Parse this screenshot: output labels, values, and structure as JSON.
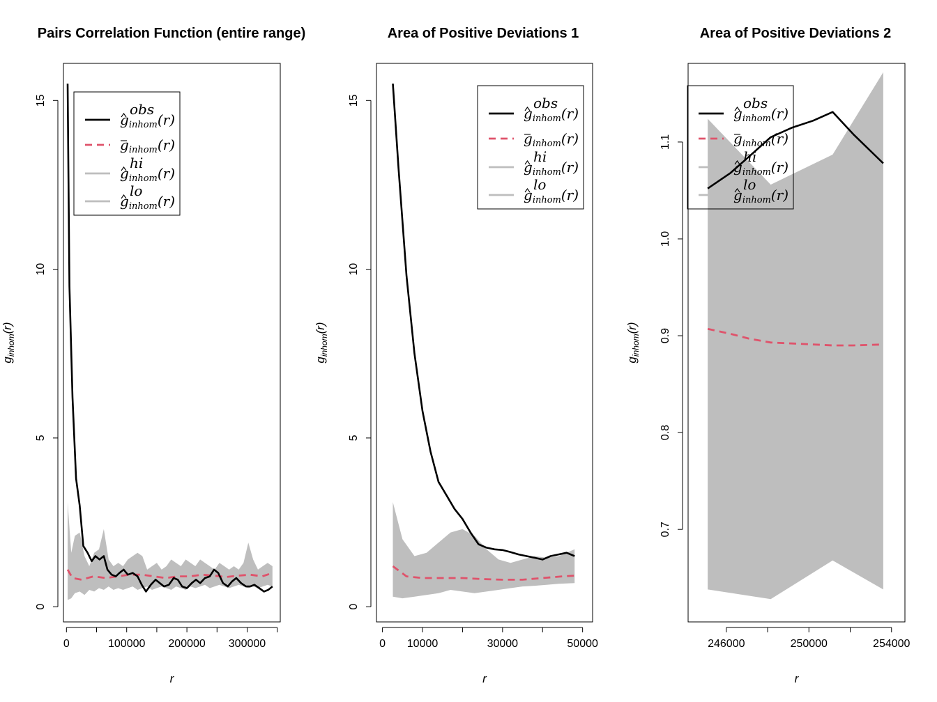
{
  "chart_data": [
    {
      "type": "line",
      "title": "Pairs Correlation Function (entire range)",
      "xlabel": "r",
      "ylabel": "g_inhom(r)",
      "xlim": [
        -5000,
        355000
      ],
      "ylim": [
        -0.45,
        16.1
      ],
      "xticks": [
        0,
        100000,
        200000,
        300000
      ],
      "xtick_labels": [
        "0",
        "100000",
        "200000",
        "300000"
      ],
      "xticks_minor": [
        50000,
        150000,
        250000,
        350000
      ],
      "yticks": [
        0,
        5,
        10,
        15
      ],
      "ytick_labels": [
        "0",
        "5",
        "10",
        "15"
      ],
      "legend_position": "top-left",
      "grid": false,
      "series": [
        {
          "name": "obs",
          "color": "#000000",
          "style": "solid",
          "x": [
            2000,
            5000,
            10000,
            16000,
            22000,
            28000,
            35000,
            42000,
            48000,
            55000,
            62000,
            68000,
            75000,
            82000,
            88000,
            95000,
            102000,
            110000,
            118000,
            125000,
            132000,
            140000,
            148000,
            155000,
            162000,
            170000,
            178000,
            185000,
            192000,
            200000,
            208000,
            215000,
            222000,
            230000,
            238000,
            245000,
            252000,
            260000,
            268000,
            275000,
            282000,
            290000,
            298000,
            305000,
            312000,
            320000,
            328000,
            335000,
            342000
          ],
          "y": [
            15.5,
            9.5,
            6.2,
            3.8,
            3.0,
            1.8,
            1.6,
            1.35,
            1.5,
            1.4,
            1.5,
            1.1,
            0.95,
            0.9,
            1.0,
            1.1,
            0.95,
            1.0,
            0.9,
            0.65,
            0.45,
            0.65,
            0.8,
            0.7,
            0.6,
            0.65,
            0.85,
            0.8,
            0.6,
            0.55,
            0.7,
            0.8,
            0.7,
            0.85,
            0.9,
            1.1,
            1.0,
            0.7,
            0.6,
            0.75,
            0.85,
            0.7,
            0.6,
            0.6,
            0.65,
            0.55,
            0.45,
            0.5,
            0.6
          ]
        },
        {
          "name": "mean",
          "color": "#DF536B",
          "style": "dashed",
          "x": [
            2000,
            10000,
            25000,
            45000,
            65000,
            85000,
            105000,
            125000,
            145000,
            165000,
            185000,
            205000,
            225000,
            245000,
            265000,
            285000,
            305000,
            325000,
            342000
          ],
          "y": [
            1.1,
            0.85,
            0.8,
            0.9,
            0.85,
            0.9,
            0.95,
            0.95,
            0.9,
            0.85,
            0.9,
            0.9,
            0.95,
            0.92,
            0.88,
            0.92,
            0.95,
            0.9,
            1.0
          ]
        },
        {
          "name": "hi",
          "color": "#BEBEBE",
          "style": "band-upper",
          "x": [
            2000,
            8000,
            14000,
            22000,
            30000,
            38000,
            46000,
            54000,
            62000,
            70000,
            78000,
            86000,
            94000,
            102000,
            110000,
            118000,
            126000,
            134000,
            142000,
            150000,
            158000,
            166000,
            174000,
            182000,
            190000,
            198000,
            206000,
            214000,
            222000,
            230000,
            238000,
            246000,
            254000,
            262000,
            270000,
            278000,
            286000,
            294000,
            302000,
            310000,
            318000,
            326000,
            334000,
            342000
          ],
          "y": [
            3.1,
            1.6,
            2.1,
            2.2,
            1.5,
            1.2,
            1.6,
            1.7,
            2.3,
            1.4,
            1.2,
            1.3,
            1.2,
            1.4,
            1.5,
            1.6,
            1.5,
            1.1,
            1.2,
            1.3,
            1.1,
            1.2,
            1.4,
            1.3,
            1.2,
            1.4,
            1.3,
            1.2,
            1.4,
            1.3,
            1.2,
            1.1,
            1.3,
            1.2,
            1.1,
            1.2,
            1.1,
            1.3,
            1.9,
            1.4,
            1.1,
            1.2,
            1.3,
            1.2
          ]
        },
        {
          "name": "lo",
          "color": "#BEBEBE",
          "style": "band-lower",
          "x": [
            2000,
            8000,
            14000,
            22000,
            30000,
            38000,
            46000,
            54000,
            62000,
            70000,
            78000,
            86000,
            94000,
            102000,
            110000,
            118000,
            126000,
            134000,
            142000,
            150000,
            158000,
            166000,
            174000,
            182000,
            190000,
            198000,
            206000,
            214000,
            222000,
            230000,
            238000,
            246000,
            254000,
            262000,
            270000,
            278000,
            286000,
            294000,
            302000,
            310000,
            318000,
            326000,
            334000,
            342000
          ],
          "y": [
            0.2,
            0.25,
            0.4,
            0.45,
            0.35,
            0.5,
            0.45,
            0.55,
            0.5,
            0.6,
            0.5,
            0.55,
            0.5,
            0.55,
            0.6,
            0.5,
            0.55,
            0.6,
            0.5,
            0.55,
            0.6,
            0.55,
            0.5,
            0.6,
            0.55,
            0.5,
            0.6,
            0.55,
            0.6,
            0.65,
            0.55,
            0.6,
            0.65,
            0.6,
            0.55,
            0.6,
            0.65,
            0.6,
            0.55,
            0.6,
            0.55,
            0.6,
            0.65,
            0.6
          ]
        }
      ]
    },
    {
      "type": "line",
      "title": "Area of Positive Deviations 1",
      "xlabel": "r",
      "ylabel": "g_inhom(r)",
      "xlim": [
        -1500,
        52500
      ],
      "ylim": [
        -0.45,
        16.1
      ],
      "xticks": [
        0,
        10000,
        30000,
        50000
      ],
      "xtick_labels": [
        "0",
        "10000",
        "30000",
        "50000"
      ],
      "xticks_minor": [
        20000,
        40000
      ],
      "yticks": [
        0,
        5,
        10,
        15
      ],
      "ytick_labels": [
        "0",
        "5",
        "10",
        "15"
      ],
      "legend_position": "top-right",
      "grid": false,
      "series": [
        {
          "name": "obs",
          "color": "#000000",
          "style": "solid",
          "x": [
            2600,
            4000,
            6000,
            8000,
            10000,
            12000,
            14000,
            16000,
            18000,
            20000,
            22000,
            24000,
            26000,
            28000,
            30000,
            32000,
            34000,
            36000,
            38000,
            40000,
            42000,
            44000,
            46000,
            48000
          ],
          "y": [
            15.5,
            13.0,
            9.8,
            7.5,
            5.8,
            4.6,
            3.7,
            3.3,
            2.9,
            2.6,
            2.2,
            1.85,
            1.75,
            1.7,
            1.68,
            1.62,
            1.55,
            1.5,
            1.45,
            1.4,
            1.5,
            1.55,
            1.6,
            1.5
          ]
        },
        {
          "name": "mean",
          "color": "#DF536B",
          "style": "dashed",
          "x": [
            2600,
            6000,
            10000,
            15000,
            20000,
            25000,
            30000,
            35000,
            40000,
            45000,
            48000
          ],
          "y": [
            1.2,
            0.9,
            0.85,
            0.85,
            0.85,
            0.82,
            0.8,
            0.8,
            0.85,
            0.9,
            0.92
          ]
        },
        {
          "name": "hi",
          "color": "#BEBEBE",
          "style": "band-upper",
          "x": [
            2600,
            5000,
            8000,
            11000,
            14000,
            17000,
            20000,
            23000,
            26000,
            29000,
            32000,
            35000,
            38000,
            41000,
            44000,
            48000
          ],
          "y": [
            3.1,
            2.0,
            1.5,
            1.6,
            1.9,
            2.2,
            2.3,
            2.1,
            1.7,
            1.4,
            1.3,
            1.4,
            1.5,
            1.45,
            1.5,
            1.7
          ]
        },
        {
          "name": "lo",
          "color": "#BEBEBE",
          "style": "band-lower",
          "x": [
            2600,
            5000,
            8000,
            11000,
            14000,
            17000,
            20000,
            23000,
            26000,
            29000,
            32000,
            35000,
            38000,
            41000,
            44000,
            48000
          ],
          "y": [
            0.3,
            0.25,
            0.3,
            0.35,
            0.4,
            0.5,
            0.45,
            0.4,
            0.45,
            0.5,
            0.55,
            0.6,
            0.62,
            0.65,
            0.68,
            0.7
          ]
        }
      ]
    },
    {
      "type": "line",
      "title": "Area of Positive Deviations 2",
      "xlabel": "r",
      "ylabel": "g_inhom(r)",
      "xlim": [
        244150,
        254650
      ],
      "ylim": [
        0.6045,
        1.1812
      ],
      "xticks": [
        246000,
        250000,
        254000
      ],
      "xtick_labels": [
        "246000",
        "250000",
        "254000"
      ],
      "xticks_minor": [
        248000,
        252000
      ],
      "yticks": [
        0.7,
        0.8,
        0.9,
        1.0,
        1.1
      ],
      "ytick_labels": [
        "0.7",
        "0.8",
        "0.9",
        "1.0",
        "1.1"
      ],
      "legend_position": "top-left",
      "grid": false,
      "series": [
        {
          "name": "obs",
          "color": "#000000",
          "style": "solid",
          "x": [
            245100,
            246200,
            247100,
            248150,
            249200,
            250200,
            251150,
            252150,
            253600
          ],
          "y": [
            1.052,
            1.068,
            1.085,
            1.105,
            1.115,
            1.122,
            1.131,
            1.108,
            1.078
          ]
        },
        {
          "name": "mean",
          "color": "#DF536B",
          "style": "dashed",
          "x": [
            245100,
            246200,
            247100,
            248150,
            249200,
            250200,
            251150,
            252150,
            253600
          ],
          "y": [
            0.907,
            0.902,
            0.897,
            0.893,
            0.892,
            0.891,
            0.89,
            0.89,
            0.891
          ]
        },
        {
          "name": "hi",
          "color": "#BEBEBE",
          "style": "band-upper",
          "x": [
            245100,
            248150,
            251150,
            253600
          ],
          "y": [
            1.124,
            1.056,
            1.087,
            1.172
          ]
        },
        {
          "name": "lo",
          "color": "#BEBEBE",
          "style": "band-lower",
          "x": [
            245100,
            248150,
            251150,
            253600
          ],
          "y": [
            0.638,
            0.628,
            0.668,
            0.638
          ]
        }
      ]
    }
  ],
  "legend_entries": [
    {
      "key": "obs",
      "accent": "hat",
      "base": "g",
      "sup": "obs",
      "sub": "inhom",
      "arg": "(r)",
      "color": "#000000",
      "dash": ""
    },
    {
      "key": "mean",
      "accent": "bar",
      "base": "g",
      "sup": "",
      "sub": "inhom",
      "arg": "(r)",
      "color": "#DF536B",
      "dash": "10,7"
    },
    {
      "key": "hi",
      "accent": "hat",
      "base": "g",
      "sup": "hi",
      "sub": "inhom",
      "arg": "(r)",
      "color": "#BEBEBE",
      "dash": ""
    },
    {
      "key": "lo",
      "accent": "hat",
      "base": "g",
      "sup": "lo",
      "sub": "inhom",
      "arg": "(r)",
      "color": "#BEBEBE",
      "dash": ""
    }
  ],
  "colors": {
    "obs": "#000000",
    "mean": "#DF536B",
    "band": "#BEBEBE",
    "frame": "#000000"
  }
}
